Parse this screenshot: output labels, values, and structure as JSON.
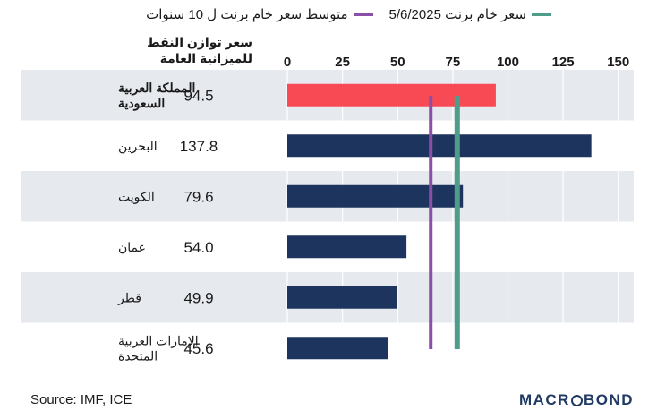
{
  "legend": {
    "items": [
      {
        "label": "سعر خام برنت 5/6/2025",
        "color": "#4e9c8a"
      },
      {
        "label": "متوسط سعر خام برنت ل 10 سنوات",
        "color": "#8b4fa8"
      }
    ]
  },
  "table_header": "سعر توازن النفط للميزانية العامة",
  "colors": {
    "highlight_bar": "#f84a55",
    "bar": "#1d355e",
    "row_band": "#e6e9ee",
    "grid": "#ffffff"
  },
  "chart_data": {
    "type": "bar",
    "orientation": "horizontal",
    "categories": [
      "المملكة العربية السعودية",
      "البحرين",
      "الكويت",
      "عمان",
      "قطر",
      "الإمارات العربية المتحدة"
    ],
    "category_lines": [
      [
        "المملكة العربية",
        "السعودية"
      ],
      [
        "البحرين"
      ],
      [
        "الكويت"
      ],
      [
        "عمان"
      ],
      [
        "قطر"
      ],
      [
        "الإمارات العربية",
        "المتحدة"
      ]
    ],
    "values": [
      94.5,
      137.8,
      79.6,
      54.0,
      49.9,
      45.6
    ],
    "value_labels": [
      "94.5",
      "137.8",
      "79.6",
      "54.0",
      "49.9",
      "45.6"
    ],
    "highlight_index": 0,
    "xlim": [
      0,
      157
    ],
    "xticks": [
      0,
      25,
      50,
      75,
      100,
      125,
      150
    ],
    "reference_lines": [
      {
        "name": "متوسط سعر خام برنت ل 10 سنوات",
        "value": 65,
        "color": "#8b4fa8"
      },
      {
        "name": "سعر خام برنت 5/6/2025",
        "value": 77,
        "color": "#4e9c8a"
      }
    ],
    "grid": true
  },
  "footer": {
    "source": "Source: IMF, ICE",
    "brand": [
      "MACR",
      "BOND"
    ]
  }
}
